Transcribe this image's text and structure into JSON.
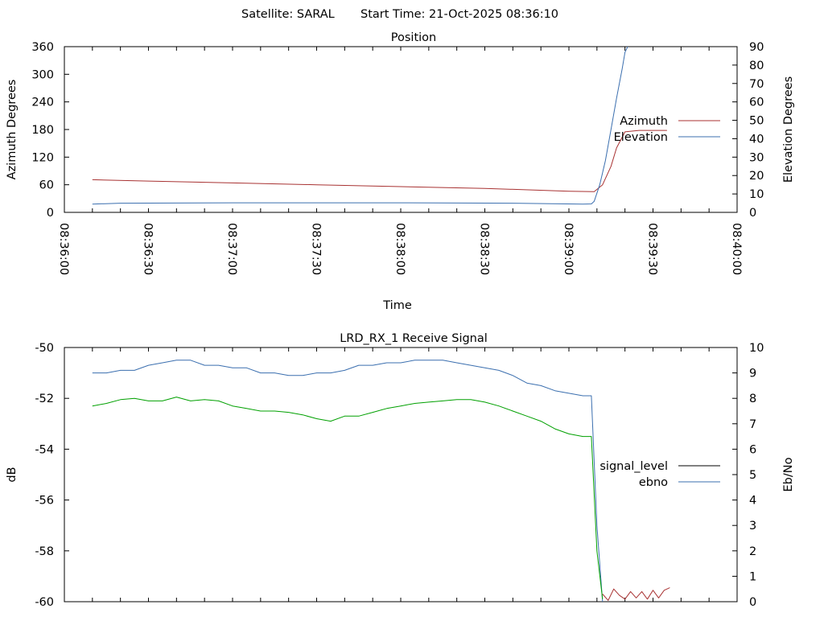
{
  "header": {
    "satellite": "Satellite: SARAL",
    "start_time": "Start Time: 21-Oct-2025 08:36:10"
  },
  "chart_data": [
    {
      "type": "line",
      "title": "Position",
      "xlabel": "Time",
      "ylabel": "Azimuth Degrees",
      "y2label": "Elevation Degrees",
      "xlim": [
        "08:36:00",
        "08:40:00"
      ],
      "xlim_seconds": [
        0,
        240
      ],
      "x_tick_labels": [
        "08:36:00",
        "08:36:30",
        "08:37:00",
        "08:37:30",
        "08:38:00",
        "08:38:30",
        "08:39:00",
        "08:39:30",
        "08:40:00"
      ],
      "ylim": [
        0,
        360
      ],
      "y_ticks": [
        0,
        60,
        120,
        180,
        240,
        300,
        360
      ],
      "y2lim": [
        0,
        90
      ],
      "y2_ticks": [
        0,
        10,
        20,
        30,
        40,
        50,
        60,
        70,
        80,
        90
      ],
      "legend_position": "right",
      "series": [
        {
          "name": "Azimuth",
          "axis": "y",
          "color": "#a83232",
          "x": [
            "08:36:10",
            "08:36:30",
            "08:37:00",
            "08:37:30",
            "08:38:00",
            "08:38:30",
            "08:39:00",
            "08:39:09",
            "08:39:12",
            "08:39:15",
            "08:39:17",
            "08:39:20",
            "08:39:25",
            "08:39:30",
            "08:39:35"
          ],
          "y": [
            71,
            68,
            64,
            60,
            56,
            52,
            46,
            45,
            60,
            100,
            140,
            175,
            178,
            178,
            178
          ]
        },
        {
          "name": "Elevation",
          "axis": "y2",
          "color": "#3b6faf",
          "x": [
            "08:36:10",
            "08:36:20",
            "08:37:00",
            "08:38:00",
            "08:38:40",
            "08:39:05",
            "08:39:08",
            "08:39:09",
            "08:39:11",
            "08:39:13",
            "08:39:15",
            "08:39:17",
            "08:39:19",
            "08:39:20",
            "08:39:21"
          ],
          "y": [
            4.5,
            5,
            5.2,
            5.2,
            5,
            4.5,
            4.6,
            6,
            15,
            28,
            45,
            62,
            78,
            87,
            90
          ]
        }
      ]
    },
    {
      "type": "line",
      "title": "LRD_RX_1 Receive Signal",
      "xlabel": "",
      "ylabel": "dB",
      "y2label": "Eb/No",
      "xlim": [
        "08:36:00",
        "08:40:00"
      ],
      "xlim_seconds": [
        0,
        240
      ],
      "ylim": [
        -60,
        -50
      ],
      "y_ticks": [
        -60,
        -58,
        -56,
        -54,
        -52,
        -50
      ],
      "y2lim": [
        0,
        10
      ],
      "y2_ticks": [
        0,
        1,
        2,
        3,
        4,
        5,
        6,
        7,
        8,
        9,
        10
      ],
      "legend_position": "right",
      "series": [
        {
          "name": "signal_level",
          "axis": "y",
          "color": "#000000",
          "x": [],
          "y": []
        },
        {
          "name": "ebno",
          "axis": "y2",
          "color": "#3b6faf",
          "x": [
            "08:36:10",
            "08:36:15",
            "08:36:20",
            "08:36:25",
            "08:36:30",
            "08:36:35",
            "08:36:40",
            "08:36:45",
            "08:36:50",
            "08:36:55",
            "08:37:00",
            "08:37:05",
            "08:37:10",
            "08:37:15",
            "08:37:20",
            "08:37:25",
            "08:37:30",
            "08:37:35",
            "08:37:40",
            "08:37:45",
            "08:37:50",
            "08:37:55",
            "08:38:00",
            "08:38:05",
            "08:38:10",
            "08:38:15",
            "08:38:20",
            "08:38:25",
            "08:38:30",
            "08:38:35",
            "08:38:40",
            "08:38:45",
            "08:38:50",
            "08:38:55",
            "08:39:00",
            "08:39:05",
            "08:39:08",
            "08:39:10",
            "08:39:12"
          ],
          "y": [
            9.0,
            9.0,
            9.1,
            9.1,
            9.3,
            9.4,
            9.5,
            9.5,
            9.3,
            9.3,
            9.2,
            9.2,
            9.0,
            9.0,
            8.9,
            8.9,
            9.0,
            9.0,
            9.1,
            9.3,
            9.3,
            9.4,
            9.4,
            9.5,
            9.5,
            9.5,
            9.4,
            9.3,
            9.2,
            9.1,
            8.9,
            8.6,
            8.5,
            8.3,
            8.2,
            8.1,
            8.1,
            3.0,
            0.0
          ]
        },
        {
          "name": "",
          "axis": "y2",
          "color": "#00a000",
          "x": [
            "08:36:10",
            "08:36:15",
            "08:36:20",
            "08:36:25",
            "08:36:30",
            "08:36:35",
            "08:36:40",
            "08:36:45",
            "08:36:50",
            "08:36:55",
            "08:37:00",
            "08:37:05",
            "08:37:10",
            "08:37:15",
            "08:37:20",
            "08:37:25",
            "08:37:30",
            "08:37:35",
            "08:37:40",
            "08:37:45",
            "08:37:50",
            "08:37:55",
            "08:38:00",
            "08:38:05",
            "08:38:10",
            "08:38:15",
            "08:38:20",
            "08:38:25",
            "08:38:30",
            "08:38:35",
            "08:38:40",
            "08:38:45",
            "08:38:50",
            "08:38:55",
            "08:39:00",
            "08:39:05",
            "08:39:08",
            "08:39:10",
            "08:39:12"
          ],
          "y": [
            7.7,
            7.8,
            7.95,
            8.0,
            7.9,
            7.9,
            8.05,
            7.9,
            7.95,
            7.9,
            7.7,
            7.6,
            7.5,
            7.5,
            7.45,
            7.35,
            7.2,
            7.1,
            7.3,
            7.3,
            7.45,
            7.6,
            7.7,
            7.8,
            7.85,
            7.9,
            7.95,
            7.95,
            7.85,
            7.7,
            7.5,
            7.3,
            7.1,
            6.8,
            6.6,
            6.5,
            6.5,
            2.0,
            0.1
          ]
        },
        {
          "name": "",
          "axis": "y2",
          "color": "#a83232",
          "x": [
            "08:39:12",
            "08:39:14",
            "08:39:16",
            "08:39:18",
            "08:39:20",
            "08:39:22",
            "08:39:24",
            "08:39:26",
            "08:39:28",
            "08:39:30",
            "08:39:32",
            "08:39:34",
            "08:39:36"
          ],
          "y": [
            0.3,
            0.05,
            0.5,
            0.25,
            0.1,
            0.4,
            0.15,
            0.4,
            0.1,
            0.45,
            0.15,
            0.45,
            0.55
          ]
        }
      ]
    }
  ]
}
